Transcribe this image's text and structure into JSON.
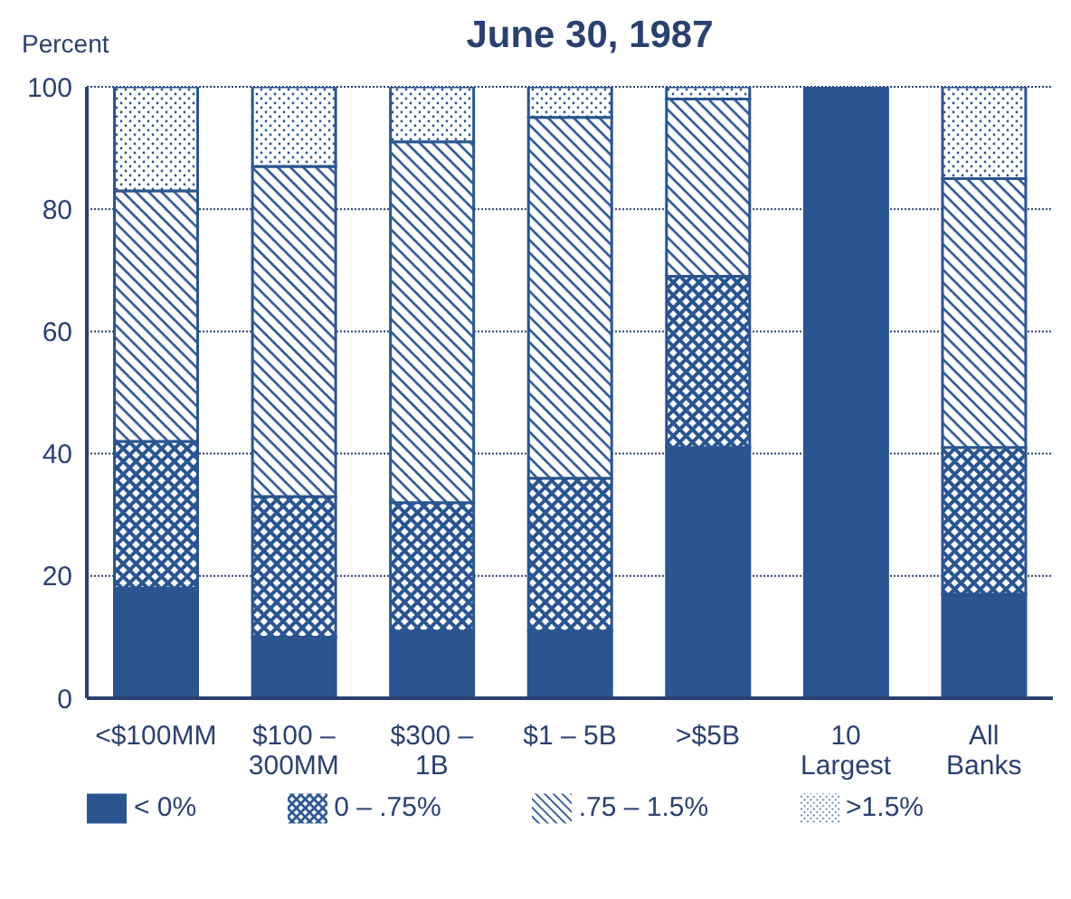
{
  "chart_data": {
    "type": "bar",
    "title": "June 30, 1987",
    "ylabel": "Percent",
    "stacked": true,
    "categories": [
      "<$100MM",
      "$100 – 300MM",
      "$300 – 1B",
      "$1 – 5B",
      ">$5B",
      "10 Largest",
      "All Banks"
    ],
    "series": [
      {
        "name": "< 0%",
        "color": "#2a5590",
        "values": [
          18,
          10,
          11,
          11,
          41,
          100,
          17
        ]
      },
      {
        "name": "0 – .75%",
        "color": "#2a5590",
        "values": [
          24,
          23,
          21,
          25,
          28,
          0,
          24
        ]
      },
      {
        "name": ".75 – 1.5%",
        "color": "#2a5590",
        "values": [
          41,
          54,
          59,
          59,
          29,
          0,
          44
        ]
      },
      {
        "name": ">1.5%",
        "color": "#2a5590",
        "values": [
          17,
          13,
          9,
          5,
          2,
          0,
          15
        ]
      }
    ],
    "ylim": [
      0,
      100
    ],
    "yticks": [
      0,
      20,
      40,
      60,
      80,
      100
    ],
    "grid": "y",
    "legend": "bottom"
  }
}
